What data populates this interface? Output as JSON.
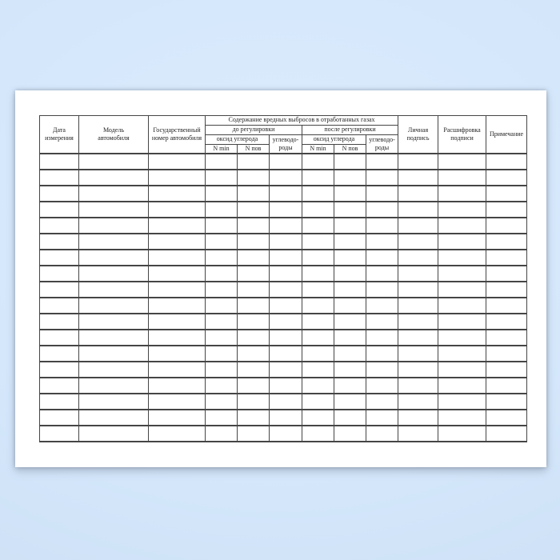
{
  "document": {
    "kind": "blank measurement log form",
    "language": "ru"
  },
  "colors": {
    "backdrop_top": "#deecfd",
    "backdrop_mid": "#d4e7fb",
    "backdrop_bottom": "#cbdef3",
    "page_bg": "#ffffff",
    "line": "#454545",
    "ink": "#1f1f1f"
  },
  "table": {
    "header": {
      "date_label": "Дата\nизмерения",
      "model_label": "Модель\nавтомобиля",
      "plate_label": "Государственный\nномер автомобиля",
      "emissions_group_label": "Содержание вредных выбросов в отработанных газах",
      "before_adjustment_label": "до регулировки",
      "after_adjustment_label": "после регулировки",
      "carbon_oxide_before_label": "оксид углерода",
      "carbon_oxide_after_label": "оксид углерода",
      "hydrocarbons_before_label": "углеводо-\nроды",
      "hydrocarbons_after_label": "углеводо-\nроды",
      "n_min_before_label": "N min",
      "n_pov_before_label": "N пов",
      "n_min_after_label": "N min",
      "n_pov_after_label": "N пов",
      "personal_signature_label": "Личная\nподпись",
      "signature_decryption_label": "Расшифровка\nподписи",
      "note_label": "Примечание"
    },
    "body": {
      "row_count": 18,
      "column_count": 12,
      "cell_value": ""
    }
  }
}
